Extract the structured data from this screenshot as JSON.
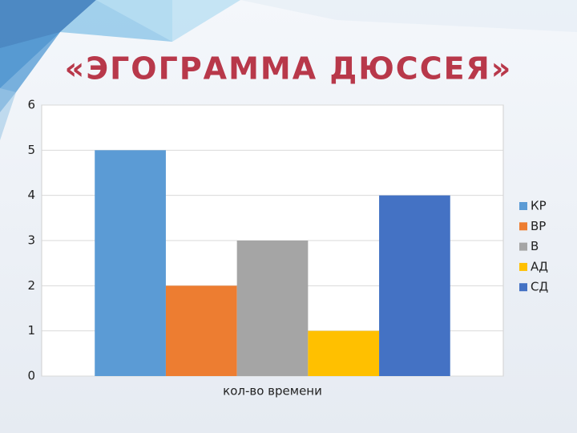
{
  "chart_data": {
    "type": "bar",
    "title": "«ЭГОГРАММА ДЮССЕЯ»",
    "categories": [
      "кол-во времени"
    ],
    "series": [
      {
        "name": "КР",
        "color": "#5b9bd5",
        "values": [
          5
        ]
      },
      {
        "name": "ВР",
        "color": "#ed7d31",
        "values": [
          2
        ]
      },
      {
        "name": "В",
        "color": "#a5a5a5",
        "values": [
          3
        ]
      },
      {
        "name": "АД",
        "color": "#ffc000",
        "values": [
          1
        ]
      },
      {
        "name": "СД",
        "color": "#4472c4",
        "values": [
          4
        ]
      }
    ],
    "ylim": [
      0,
      6
    ],
    "yticks": [
      0,
      1,
      2,
      3,
      4,
      5,
      6
    ],
    "grid": true,
    "legend": "right"
  }
}
